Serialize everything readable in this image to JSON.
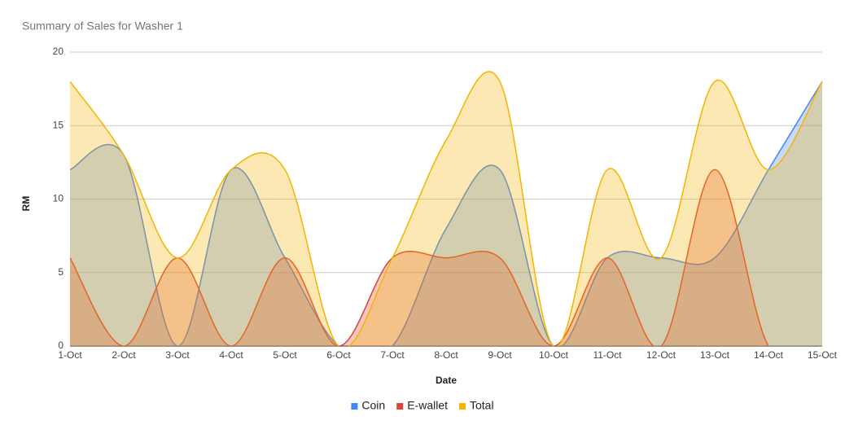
{
  "chart_data": {
    "type": "area",
    "title": "Summary of  Sales for Washer 1",
    "x_label": "Date",
    "y_label": "RM",
    "categories": [
      "1-Oct",
      "2-Oct",
      "3-Oct",
      "4-Oct",
      "5-Oct",
      "6-Oct",
      "7-Oct",
      "8-Oct",
      "9-Oct",
      "10-Oct",
      "11-Oct",
      "12-Oct",
      "13-Oct",
      "14-Oct",
      "15-Oct"
    ],
    "series": [
      {
        "name": "Coin",
        "color": "#4285f4",
        "values": [
          12,
          13,
          0,
          12,
          6,
          0,
          0,
          8,
          12,
          0,
          6,
          6,
          6,
          12,
          18
        ]
      },
      {
        "name": "E-wallet",
        "color": "#db4437",
        "values": [
          6,
          0,
          6,
          0,
          6,
          0,
          6,
          6,
          6,
          0,
          6,
          0,
          12,
          0,
          0
        ]
      },
      {
        "name": "Total",
        "color": "#f4b400",
        "values": [
          18,
          13,
          6,
          12,
          12,
          0,
          6,
          14,
          18,
          0,
          12,
          6,
          18,
          12,
          18
        ]
      }
    ],
    "ylim": [
      0,
      20
    ],
    "yticks": [
      0,
      5,
      10,
      15,
      20
    ],
    "grid": true,
    "legend": "bottom"
  }
}
